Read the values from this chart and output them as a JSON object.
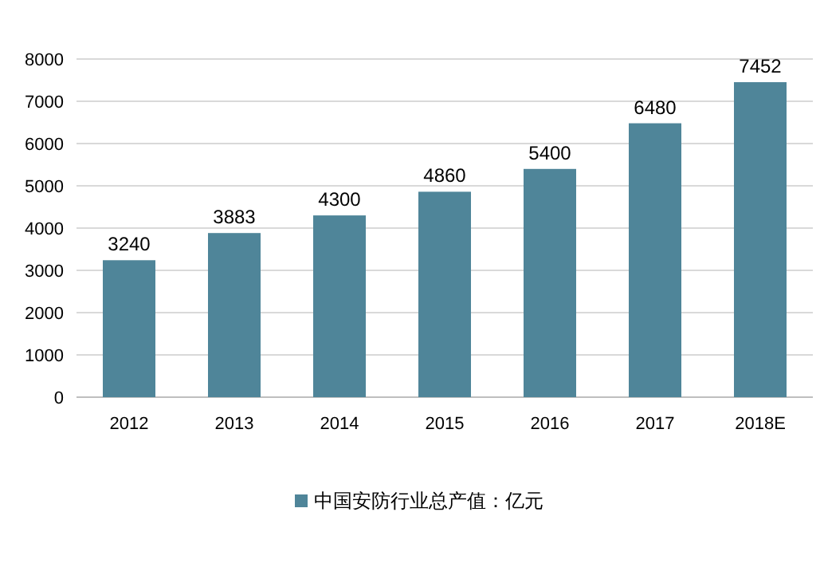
{
  "chart_data": {
    "type": "bar",
    "categories": [
      "2012",
      "2013",
      "2014",
      "2015",
      "2016",
      "2017",
      "2018E"
    ],
    "series": [
      {
        "name": "中国安防行业总产值：亿元",
        "color": "#4f8599",
        "values": [
          3240,
          3883,
          4300,
          4860,
          5400,
          6480,
          7452
        ]
      }
    ],
    "ylim": [
      0,
      8000
    ],
    "yticks": [
      0,
      1000,
      2000,
      3000,
      4000,
      5000,
      6000,
      7000,
      8000
    ],
    "grid": "y",
    "legend": "bottom",
    "data_labels": true
  }
}
